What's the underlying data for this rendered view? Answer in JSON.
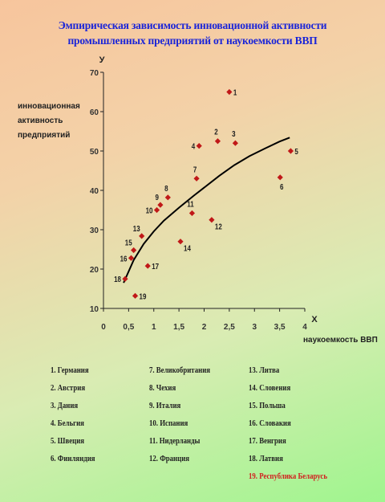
{
  "title_line1": "Эмпирическая зависимость инновационной активности",
  "title_line2": "промышленных предприятий от наукоемкости ВВП",
  "chart_data": {
    "type": "scatter",
    "ylabel": "инновационная активность предприятий",
    "xlabel": "наукоемкость ВВП",
    "x_axis_letter": "X",
    "y_axis_letter": "У",
    "xlim": [
      0,
      4
    ],
    "ylim": [
      10,
      70
    ],
    "x_ticks": [
      "0",
      "0,5",
      "1",
      "1,5",
      "2",
      "2,5",
      "3",
      "3,5",
      "4"
    ],
    "y_ticks": [
      "10",
      "20",
      "30",
      "40",
      "50",
      "60",
      "70"
    ],
    "grid": false,
    "marker_color": "#c01818",
    "trend_color": "#000000",
    "points": [
      {
        "label": "1",
        "x": 2.5,
        "y": 65
      },
      {
        "label": "2",
        "x": 2.27,
        "y": 52.5
      },
      {
        "label": "3",
        "x": 2.62,
        "y": 52
      },
      {
        "label": "4",
        "x": 1.9,
        "y": 51.3
      },
      {
        "label": "5",
        "x": 3.72,
        "y": 50
      },
      {
        "label": "6",
        "x": 3.51,
        "y": 43.3
      },
      {
        "label": "7",
        "x": 1.85,
        "y": 43
      },
      {
        "label": "8",
        "x": 1.28,
        "y": 38.2
      },
      {
        "label": "9",
        "x": 1.13,
        "y": 36.3
      },
      {
        "label": "10",
        "x": 1.06,
        "y": 35
      },
      {
        "label": "11",
        "x": 1.76,
        "y": 34.2
      },
      {
        "label": "12",
        "x": 2.15,
        "y": 32.5
      },
      {
        "label": "13",
        "x": 0.76,
        "y": 28.4
      },
      {
        "label": "14",
        "x": 1.53,
        "y": 27
      },
      {
        "label": "15",
        "x": 0.6,
        "y": 24.8
      },
      {
        "label": "16",
        "x": 0.55,
        "y": 22.8
      },
      {
        "label": "17",
        "x": 0.88,
        "y": 20.8
      },
      {
        "label": "18",
        "x": 0.43,
        "y": 17.5
      },
      {
        "label": "19",
        "x": 0.63,
        "y": 13.2
      }
    ],
    "trend": [
      [
        0.4,
        16.5
      ],
      [
        0.6,
        22.3
      ],
      [
        0.8,
        26.4
      ],
      [
        1.0,
        29.6
      ],
      [
        1.2,
        32.3
      ],
      [
        1.5,
        35.6
      ],
      [
        1.8,
        38.7
      ],
      [
        2.0,
        40.7
      ],
      [
        2.3,
        43.7
      ],
      [
        2.6,
        46.4
      ],
      [
        2.9,
        48.7
      ],
      [
        3.2,
        50.6
      ],
      [
        3.5,
        52.4
      ],
      [
        3.7,
        53.4
      ]
    ]
  },
  "legend": {
    "col1": [
      "1. Германия",
      "2. Австрия",
      "3. Дания",
      "4. Бельгия",
      "5. Швеция",
      "6. Финляндия"
    ],
    "col2": [
      "7. Великобритания",
      "8. Чехия",
      "9. Италия",
      "10. Испания",
      "11. Нидерланды",
      "12. Франция"
    ],
    "col3": [
      "13. Литва",
      "14. Словения",
      "15. Польша",
      "16. Словакия",
      "17. Венгрия",
      "18. Латвия",
      "19. Республика Беларусь"
    ],
    "highlight_color": "#d21e1e"
  }
}
